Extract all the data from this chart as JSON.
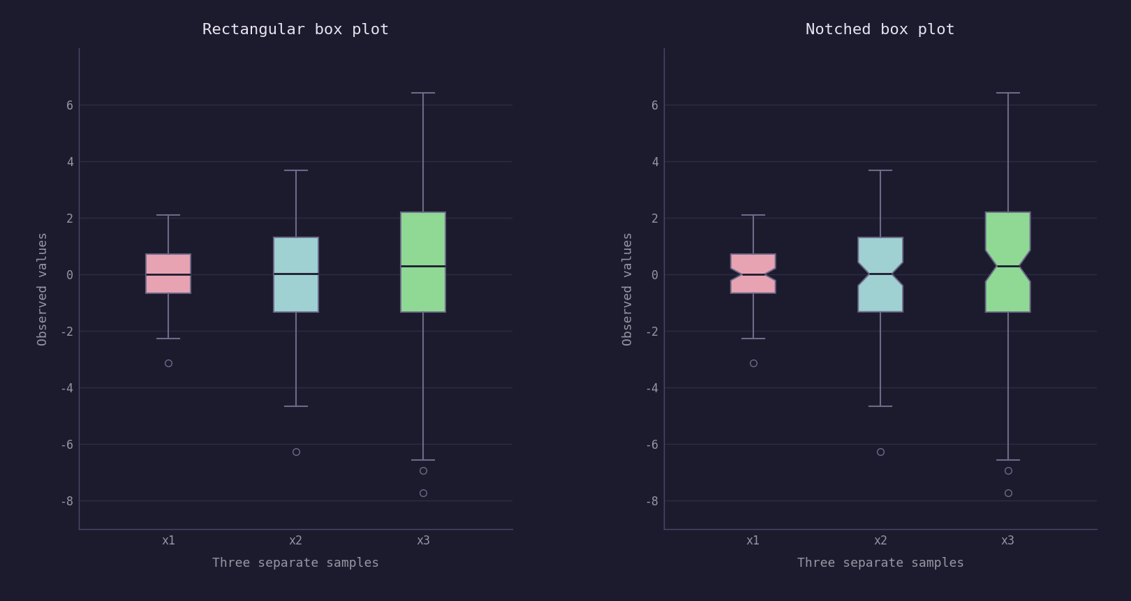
{
  "title1": "Rectangular box plot",
  "title2": "Notched box plot",
  "xlabel": "Three separate samples",
  "ylabel": "Observed values",
  "tick_labels": [
    "x1",
    "x2",
    "x3"
  ],
  "ylim": [
    -9,
    8
  ],
  "yticks": [
    -8,
    -6,
    -4,
    -2,
    0,
    2,
    4,
    6
  ],
  "bg_color": "#1c1b2e",
  "axes_bg_color": "#1c1b2e",
  "grid_color": "#2d2c45",
  "tick_color": "#9896a4",
  "title_color": "#e8e4f0",
  "spine_color": "#4a4a6a",
  "box_colors": [
    "#ffb3c1",
    "#aee6e6",
    "#9defa0"
  ],
  "box_edge_color": "#6e6a8a",
  "median_color": "#1c1b2e",
  "whisker_color": "#6e6a8a",
  "flier_color": "#6e6a8a",
  "font_family": "monospace",
  "title_fontsize": 16,
  "label_fontsize": 13,
  "tick_fontsize": 12
}
